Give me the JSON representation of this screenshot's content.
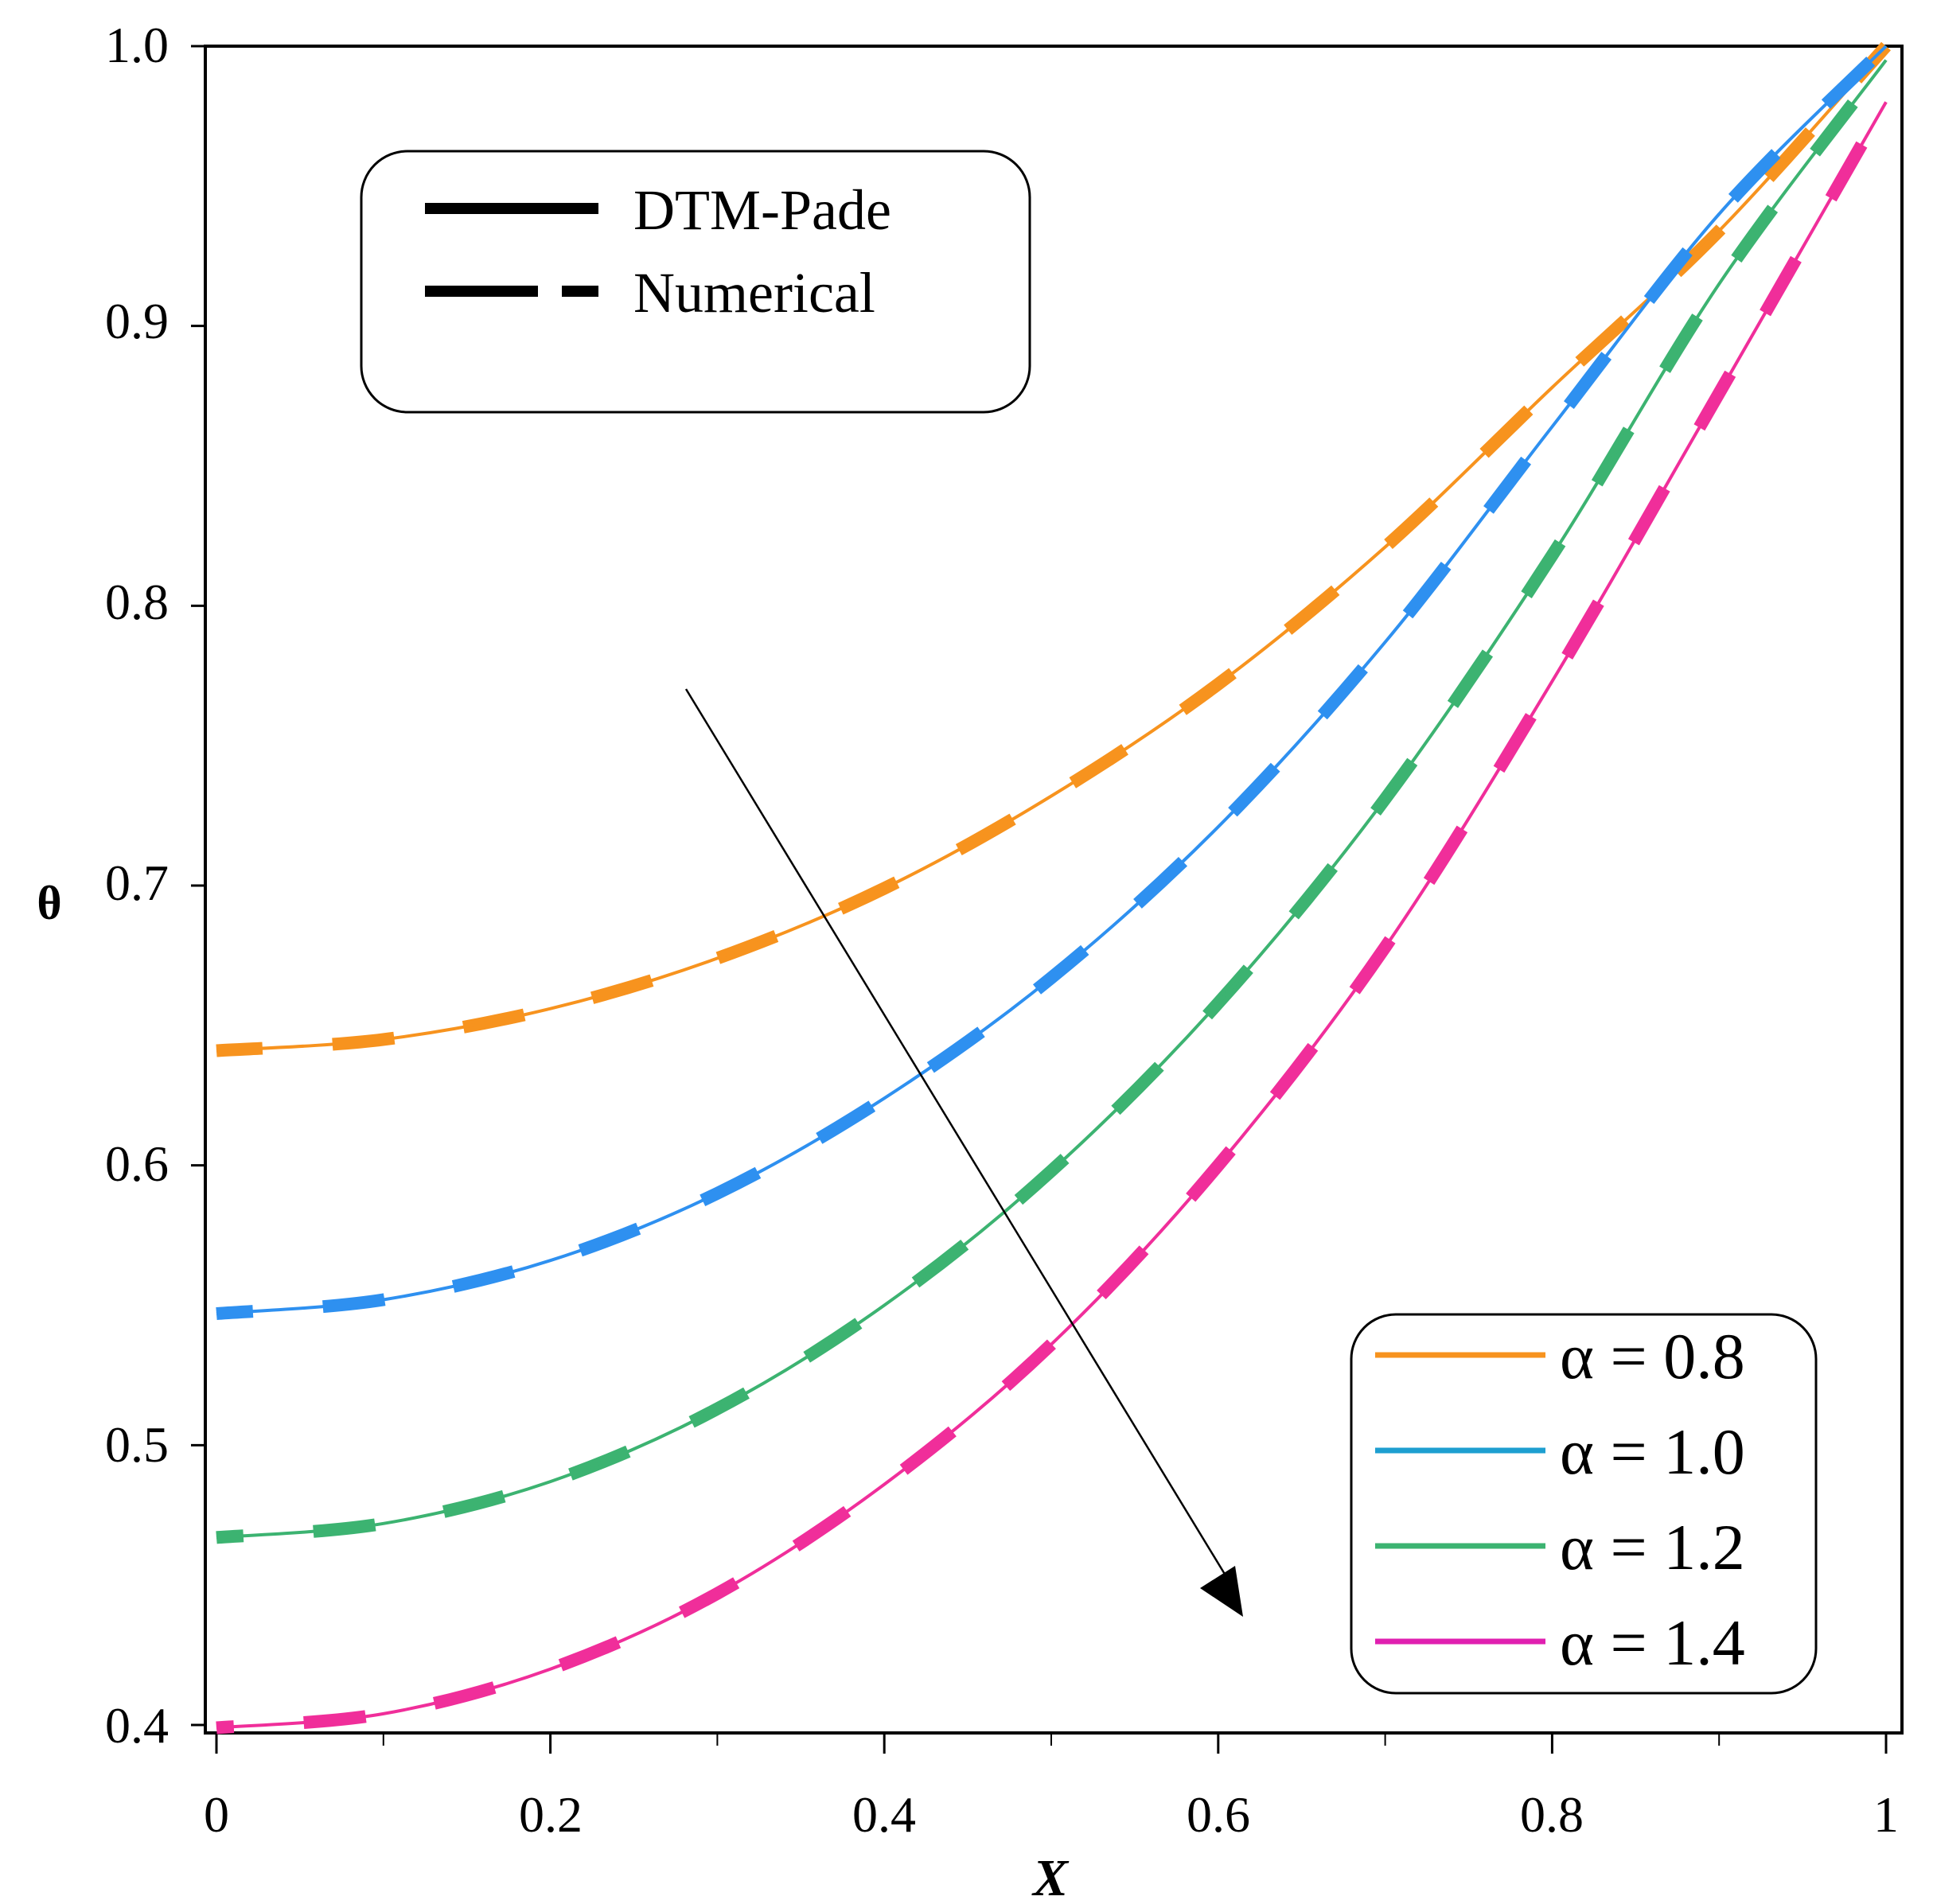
{
  "chart_data": {
    "type": "line",
    "title": "",
    "xlabel": "X",
    "ylabel": "θ",
    "xlim": [
      0,
      1
    ],
    "ylim": [
      0.4,
      1.0
    ],
    "x_ticks": [
      "0",
      "0.2",
      "0.4",
      "0.6",
      "0.8",
      "1"
    ],
    "y_ticks": [
      "0.4",
      "0.5",
      "0.6",
      "0.7",
      "0.8",
      "0.9",
      "1.0"
    ],
    "x_minor_ticks": [
      0.1,
      0.3,
      0.5,
      0.7,
      0.9
    ],
    "grid": false,
    "x": [
      0,
      0.1,
      0.2,
      0.3,
      0.4,
      0.5,
      0.6,
      0.7,
      0.8,
      0.9,
      1.0
    ],
    "series": [
      {
        "name": "α = 0.8",
        "color": "#F7931E",
        "values": [
          0.641,
          0.645,
          0.656,
          0.674,
          0.699,
          0.732,
          0.772,
          0.821,
          0.878,
          0.934,
          1.0
        ]
      },
      {
        "name": "α = 1.0",
        "color": "#2E90F0",
        "values": [
          0.547,
          0.552,
          0.566,
          0.59,
          0.624,
          0.667,
          0.721,
          0.787,
          0.864,
          0.94,
          1.0
        ]
      },
      {
        "name": "α = 1.2",
        "color": "#3CB371",
        "values": [
          0.467,
          0.472,
          0.487,
          0.513,
          0.55,
          0.598,
          0.658,
          0.731,
          0.818,
          0.915,
          0.995
        ]
      },
      {
        "name": "α = 1.4",
        "color": "#F02E9A",
        "values": [
          0.399,
          0.404,
          0.42,
          0.447,
          0.486,
          0.536,
          0.6,
          0.678,
          0.773,
          0.876,
          0.98
        ]
      }
    ],
    "method_legend": {
      "solid_label": "DTM-Pade",
      "dashed_label": "Numerical",
      "placement": "top-left"
    },
    "series_legend_placement": "bottom-right",
    "annotation": "arrow indicating increasing α"
  }
}
